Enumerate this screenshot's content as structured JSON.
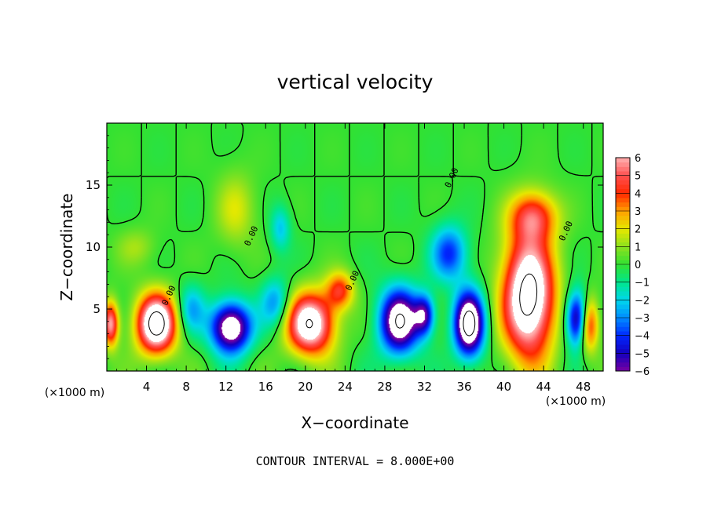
{
  "chart_data": {
    "type": "heatmap",
    "title": "vertical velocity",
    "xlabel": "X−coordinate",
    "ylabel": "Z−coordinate",
    "x_unit_label": "(×1000 m)",
    "y_unit_label": "(×1000 m)",
    "xlim": [
      0,
      50
    ],
    "ylim": [
      0,
      20
    ],
    "x_ticks": [
      4,
      8,
      12,
      16,
      20,
      24,
      28,
      32,
      36,
      40,
      44,
      48
    ],
    "y_ticks": [
      5,
      10,
      15
    ],
    "footer": "CONTOUR INTERVAL = 8.000E+00",
    "contour_label": "0.00",
    "colorbar": {
      "ticks": [
        6,
        5,
        4,
        3,
        2,
        1,
        0,
        -1,
        -2,
        -3,
        -4,
        -5,
        -6
      ],
      "tick_labels": [
        "6",
        "5",
        "4",
        "3",
        "2",
        "1",
        "0",
        "−1",
        "−2",
        "−3",
        "−4",
        "−5",
        "−6"
      ],
      "range": [
        -6,
        6
      ],
      "colors": [
        "#7b00a8",
        "#1a00c8",
        "#0030ff",
        "#0090ff",
        "#00d8f0",
        "#00e890",
        "#30e030",
        "#90e020",
        "#e8e800",
        "#ffa000",
        "#ff2000",
        "#ff5050",
        "#ffb0b0"
      ]
    },
    "features": [
      {
        "name": "updraft",
        "x": 5,
        "z": 3.8,
        "amp": 9,
        "sx": 2.0,
        "sz": 2.4
      },
      {
        "name": "updraft",
        "x": 20.5,
        "z": 3.8,
        "amp": 8,
        "sx": 2.4,
        "sz": 2.5
      },
      {
        "name": "updraft",
        "x": 42.5,
        "z": 6.0,
        "amp": 9,
        "sx": 2.6,
        "sz": 5.0
      },
      {
        "name": "updraft",
        "x": 43,
        "z": 12.5,
        "amp": 4,
        "sx": 2.4,
        "sz": 2.0
      },
      {
        "name": "updraft",
        "x": 23.5,
        "z": 6.5,
        "amp": 4,
        "sx": 1.4,
        "sz": 1.5
      },
      {
        "name": "updraft",
        "x": 0.4,
        "z": 3.8,
        "amp": 6,
        "sx": 0.8,
        "sz": 1.8
      },
      {
        "name": "updraft",
        "x": 48.5,
        "z": 3.8,
        "amp": 6,
        "sx": 1.0,
        "sz": 2.2
      },
      {
        "name": "weak-rise",
        "x": 13,
        "z": 13,
        "amp": 1.8,
        "sx": 2.0,
        "sz": 3.0
      },
      {
        "name": "weak-rise",
        "x": 3,
        "z": 10,
        "amp": 1.2,
        "sx": 2.0,
        "sz": 1.5
      },
      {
        "name": "downdraft",
        "x": 12.5,
        "z": 3.5,
        "amp": -8,
        "sx": 2.0,
        "sz": 2.0
      },
      {
        "name": "downdraft",
        "x": 29.5,
        "z": 4.0,
        "amp": -8,
        "sx": 2.0,
        "sz": 2.6
      },
      {
        "name": "downdraft",
        "x": 36.5,
        "z": 3.8,
        "amp": -9,
        "sx": 1.5,
        "sz": 2.6
      },
      {
        "name": "downdraft",
        "x": 47.5,
        "z": 4.2,
        "amp": -7,
        "sx": 1.2,
        "sz": 2.2
      },
      {
        "name": "downdraft",
        "x": 34.5,
        "z": 9.5,
        "amp": -4,
        "sx": 1.8,
        "sz": 2.2
      },
      {
        "name": "downdraft",
        "x": 32,
        "z": 4.5,
        "amp": -5,
        "sx": 1.0,
        "sz": 1.6
      },
      {
        "name": "downdraft",
        "x": 17,
        "z": 5.5,
        "amp": -3,
        "sx": 1.5,
        "sz": 2.0
      },
      {
        "name": "downdraft",
        "x": 8.5,
        "z": 5,
        "amp": -2.5,
        "sx": 1.4,
        "sz": 2.0
      },
      {
        "name": "downdraft",
        "x": 17.5,
        "z": 11.5,
        "amp": -2.2,
        "sx": 1.0,
        "sz": 1.8
      }
    ]
  }
}
